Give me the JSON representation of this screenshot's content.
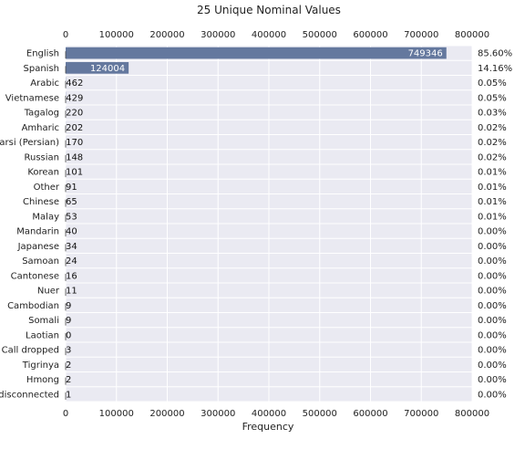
{
  "chart_data": {
    "type": "bar",
    "orientation": "horizontal",
    "title": "25 Unique Nominal Values",
    "xlabel": "Frequency",
    "ylabel": "",
    "xlim": [
      0,
      800000
    ],
    "xticks": [
      "0",
      "100000",
      "200000",
      "300000",
      "400000",
      "500000",
      "600000",
      "700000",
      "800000"
    ],
    "grid": true,
    "bar_color": "#64789e",
    "background_color": "#eaeaf2",
    "categories": [
      "English",
      "Spanish",
      "Arabic",
      "Vietnamese",
      "Tagalog",
      "Amharic",
      "Farsi (Persian)",
      "Russian",
      "Korean",
      "Other",
      "Chinese",
      "Malay",
      "Mandarin",
      "Japanese",
      "Samoan",
      "Cantonese",
      "Nuer",
      "Cambodian",
      "Somali",
      "Laotian",
      "Call dropped",
      "Tigrinya",
      "Hmong",
      "disconnected"
    ],
    "values": [
      749346,
      124004,
      462,
      429,
      220,
      202,
      170,
      148,
      101,
      91,
      65,
      53,
      40,
      34,
      24,
      16,
      11,
      9,
      9,
      0,
      3,
      2,
      2,
      1
    ],
    "value_labels": [
      "749346",
      "124004",
      "462",
      "429",
      "220",
      "202",
      "170",
      "148",
      "101",
      "91",
      "65",
      "53",
      "40",
      "34",
      "24",
      "16",
      "11",
      "9",
      "9",
      "0",
      "3",
      "2",
      "2",
      "1"
    ],
    "percentages": [
      "85.60%",
      "14.16%",
      "0.05%",
      "0.05%",
      "0.03%",
      "0.02%",
      "0.02%",
      "0.02%",
      "0.01%",
      "0.01%",
      "0.01%",
      "0.01%",
      "0.00%",
      "0.00%",
      "0.00%",
      "0.00%",
      "0.00%",
      "0.00%",
      "0.00%",
      "0.00%",
      "0.00%",
      "0.00%",
      "0.00%",
      "0.00%"
    ]
  }
}
